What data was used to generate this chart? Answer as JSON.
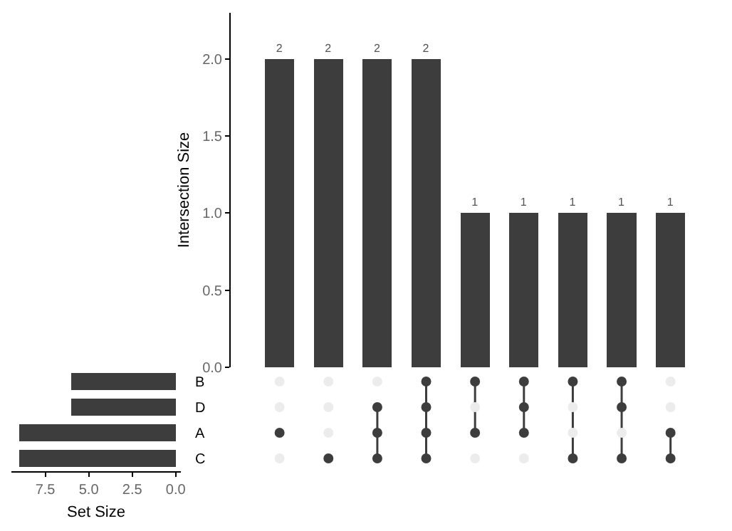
{
  "chart_data": [
    {
      "type": "bar",
      "ylabel": "Intersection Size",
      "categories": [
        null,
        null,
        null,
        null,
        null,
        null,
        null,
        null,
        null
      ],
      "values": [
        2,
        2,
        2,
        2,
        1,
        1,
        1,
        1,
        1
      ],
      "color": "#3d3d3d",
      "ylim": [
        0,
        2.3
      ],
      "yticks": [
        {
          "value": 0,
          "label": "0.0"
        },
        {
          "value": 0.5,
          "label": "0.5"
        },
        {
          "value": 1,
          "label": "1.0"
        },
        {
          "value": 1.5,
          "label": "1.5"
        },
        {
          "value": 2,
          "label": "2.0"
        }
      ],
      "data_labels": true,
      "tick_labels": "y",
      "grid": false
    },
    {
      "type": "bar",
      "orientation": "horizontal",
      "xlabel": "Set Size",
      "categories": [
        "B",
        "D",
        "A",
        "C"
      ],
      "values": [
        6,
        6,
        9,
        9
      ],
      "color": "#3d3d3d",
      "xlim": [
        9.45,
        -0.3
      ],
      "xticks": [
        {
          "value": 7.5,
          "label": "7.5"
        },
        {
          "value": 5,
          "label": "5.0"
        },
        {
          "value": 2.5,
          "label": "2.5"
        },
        {
          "value": 0,
          "label": "0.0"
        }
      ],
      "grid": false
    }
  ]
}
